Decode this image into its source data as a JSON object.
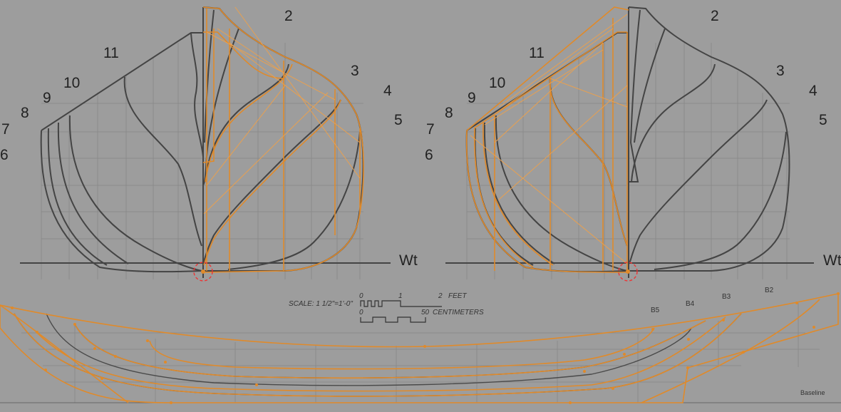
{
  "body_plan_left": {
    "station_labels": [
      "2",
      "3",
      "4",
      "5",
      "6",
      "7",
      "8",
      "9",
      "10",
      "11"
    ],
    "waterline_label": "Wt"
  },
  "body_plan_right": {
    "station_labels": [
      "2",
      "3",
      "4",
      "5",
      "6",
      "7",
      "8",
      "9",
      "10",
      "11"
    ],
    "waterline_label": "Wt"
  },
  "scale_legend": {
    "scale_text": "SCALE: 1 1/2\"=1'-0\"",
    "feet_ticks": [
      "0",
      "1",
      "2"
    ],
    "feet_unit": "FEET",
    "cm_ticks": [
      "0",
      "50"
    ],
    "cm_unit": "CENTIMETERS"
  },
  "profile": {
    "buttock_labels": [
      "B5",
      "B4",
      "B3",
      "B2"
    ],
    "baseline_label": "Baseline"
  },
  "colors": {
    "background": "#9d9d9d",
    "reference_lines": "#444444",
    "selected_mesh": "#e08a2a",
    "origin_handle": "#ee3333"
  },
  "icons": [
    "origin-handle-icon",
    "origin-handle-icon"
  ]
}
